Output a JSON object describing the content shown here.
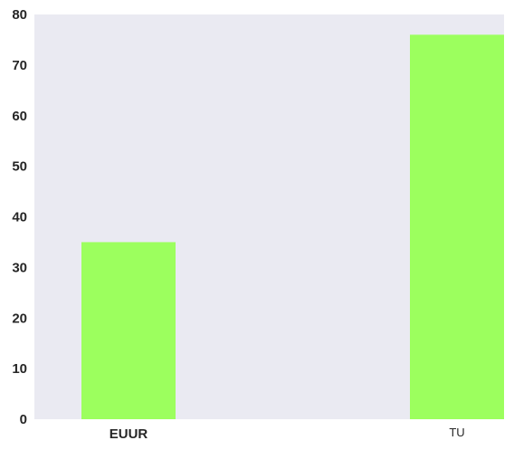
{
  "chart_data": {
    "type": "bar",
    "categories": [
      "EUUR",
      "TU"
    ],
    "values": [
      35,
      76
    ],
    "title": "",
    "xlabel": "",
    "ylabel": "",
    "ylim": [
      0,
      80
    ],
    "yticks": [
      0,
      10,
      20,
      30,
      40,
      50,
      60,
      70,
      80
    ],
    "grid": false,
    "legend": "none",
    "colors": {
      "bar": "#9cff5e",
      "plot_background": "#eaeaf2",
      "text": "#262626"
    }
  }
}
